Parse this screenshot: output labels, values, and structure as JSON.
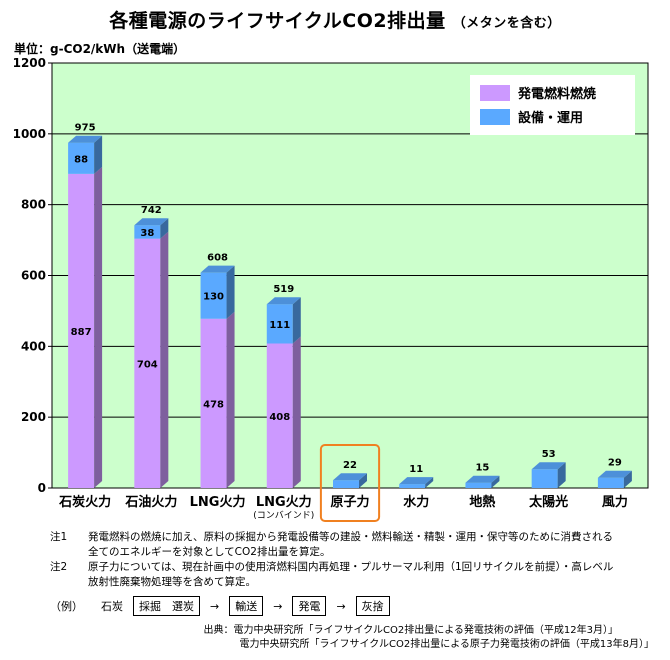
{
  "title": "各種電源のライフサイクルCO2排出量",
  "subtitle": "（メタンを含む）",
  "unit_label": "単位：g-CO2/kWh（送電端）",
  "chart_data": {
    "type": "bar",
    "stacked": true,
    "categories": [
      "石炭火力",
      "石油火力",
      "LNG火力",
      "LNG火力",
      "原子力",
      "水力",
      "地熱",
      "太陽光",
      "風力"
    ],
    "category_sublabels": [
      "",
      "",
      "",
      "(コンバインド)",
      "",
      "",
      "",
      "",
      ""
    ],
    "series": [
      {
        "name": "発電燃料燃焼",
        "values": [
          887,
          704,
          478,
          408,
          0,
          0,
          0,
          0,
          0
        ],
        "color": "#cc99ff"
      },
      {
        "name": "設備・運用",
        "values": [
          88,
          38,
          130,
          111,
          22,
          11,
          15,
          53,
          29
        ],
        "color": "#5aa9ff"
      }
    ],
    "totals": [
      975,
      742,
      608,
      519,
      22,
      11,
      15,
      53,
      29
    ],
    "yticks": [
      "0",
      "200",
      "400",
      "600",
      "800",
      "1000",
      "1200"
    ],
    "ylim": [
      0,
      1200
    ],
    "grid": true,
    "legend": "top-right",
    "highlight_index": 4,
    "highlight_color": "#f08020",
    "background_color": "#ccffcc"
  },
  "notes": [
    {
      "key": "注1",
      "lines": [
        "発電燃料の燃焼に加え、原料の採掘から発電設備等の建設・燃料輸送・精製・運用・保守等のために消費される",
        "全てのエネルギーを対象としてCO2排出量を算定。"
      ]
    },
    {
      "key": "注2",
      "lines": [
        "原子力については、現在計画中の使用済燃料国内再処理・プルサーマル利用（1回リサイクルを前提）・高レベル",
        "放射性廃棄物処理等を含めて算定。"
      ]
    }
  ],
  "example": {
    "label": "（例）",
    "source": "石炭",
    "steps": [
      "採掘　選炭",
      "輸送",
      "発電",
      "灰捨"
    ],
    "arrow": "→"
  },
  "source_lines": [
    "出典：電力中央研究所「ライフサイクルCO2排出量による発電技術の評価（平成12年3月）」",
    "電力中央研究所「ライフサイクルCO2排出量による原子力発電技術の評価（平成13年8月）」"
  ]
}
